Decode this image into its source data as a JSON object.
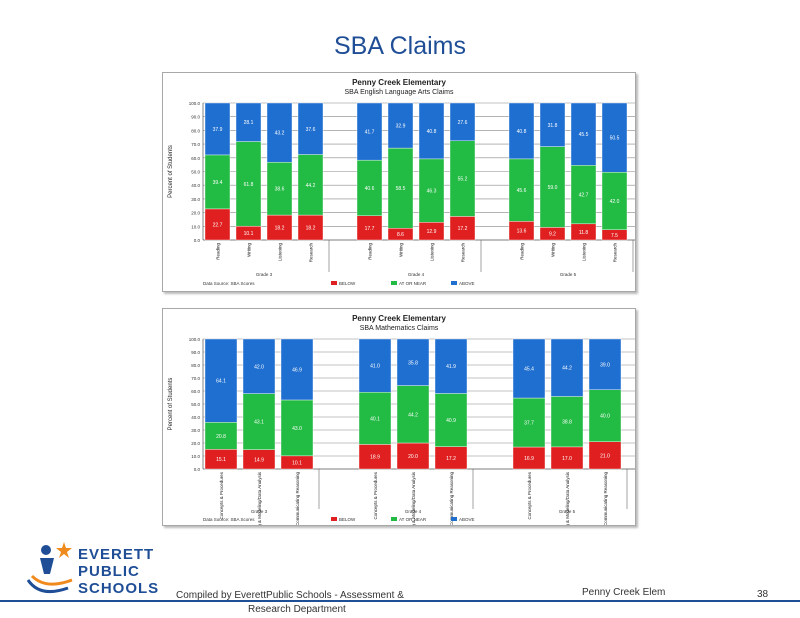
{
  "page": {
    "title": "SBA Claims",
    "footer": {
      "compiled_line1": "Compiled  by EverettPublic Schools - Assessment &",
      "compiled_line2": "Research Department",
      "school": "Penny Creek Elem",
      "page_number": "38"
    },
    "logo": {
      "word1": "EVERETT",
      "word2": "PUBLIC",
      "word3": "SCHOOLS"
    }
  },
  "chart_data": [
    {
      "type": "bar",
      "stacked": true,
      "title": "Penny Creek Elementary",
      "subtitle": "SBA English Language Arts Claims",
      "ylabel": "Percent of Students",
      "ylim": [
        0,
        100
      ],
      "yticks": [
        "0.0",
        "10.0",
        "20.0",
        "30.0",
        "40.0",
        "50.0",
        "60.0",
        "70.0",
        "80.0",
        "90.0",
        "100.0"
      ],
      "grid": true,
      "groups": [
        {
          "name": "Grade 3",
          "categories": [
            "Reading",
            "Writing",
            "Listening",
            "Research"
          ]
        },
        {
          "name": "Grade 4",
          "categories": [
            "Reading",
            "Writing",
            "Listening",
            "Research"
          ]
        },
        {
          "name": "Grade 5",
          "categories": [
            "Reading",
            "Writing",
            "Listening",
            "Research"
          ]
        }
      ],
      "series": [
        {
          "name": "BELOW",
          "color": "#e02020",
          "values": [
            22.7,
            10.1,
            18.2,
            18.2,
            17.7,
            8.6,
            12.9,
            17.2,
            13.6,
            9.2,
            11.8,
            7.5
          ]
        },
        {
          "name": "AT OR NEAR",
          "color": "#22bb44",
          "values": [
            39.4,
            61.8,
            38.6,
            44.2,
            40.6,
            58.5,
            46.3,
            55.2,
            45.6,
            59.0,
            42.7,
            42.0
          ]
        },
        {
          "name": "ABOVE",
          "color": "#1f6fd0",
          "values": [
            37.9,
            28.1,
            43.2,
            37.6,
            41.7,
            32.9,
            40.8,
            27.6,
            40.8,
            31.8,
            45.5,
            50.5
          ]
        }
      ],
      "legend_position": "bottom",
      "source_note": "Data Source: SBA Scores"
    },
    {
      "type": "bar",
      "stacked": true,
      "title": "Penny Creek Elementary",
      "subtitle": "SBA Mathematics Claims",
      "ylabel": "Percent of Students",
      "ylim": [
        0,
        100
      ],
      "yticks": [
        "0.0",
        "10.0",
        "20.0",
        "30.0",
        "40.0",
        "50.0",
        "60.0",
        "70.0",
        "80.0",
        "90.0",
        "100.0"
      ],
      "grid": true,
      "groups": [
        {
          "name": "Grade 3",
          "categories": [
            "Concepts & Procedures",
            "Problem Solving & Modeling/Data Analysis",
            "Communicating Reasoning"
          ]
        },
        {
          "name": "Grade 4",
          "categories": [
            "Concepts & Procedures",
            "Problem Solving & Modeling/Data Analysis",
            "Communicating Reasoning"
          ]
        },
        {
          "name": "Grade 5",
          "categories": [
            "Concepts & Procedures",
            "Problem Solving & Modeling/Data Analysis",
            "Communicating Reasoning"
          ]
        }
      ],
      "series": [
        {
          "name": "BELOW",
          "color": "#e02020",
          "values": [
            15.1,
            14.9,
            10.1,
            18.9,
            20.0,
            17.2,
            16.9,
            17.0,
            21.0
          ]
        },
        {
          "name": "AT OR NEAR",
          "color": "#22bb44",
          "values": [
            20.8,
            43.1,
            43.0,
            40.1,
            44.2,
            40.9,
            37.7,
            38.8,
            40.0
          ]
        },
        {
          "name": "ABOVE",
          "color": "#1f6fd0",
          "values": [
            64.1,
            42.0,
            46.9,
            41.0,
            35.8,
            41.9,
            45.4,
            44.2,
            39.0
          ]
        }
      ],
      "legend_position": "bottom",
      "source_note": "Data Source: SBA Scores"
    }
  ]
}
